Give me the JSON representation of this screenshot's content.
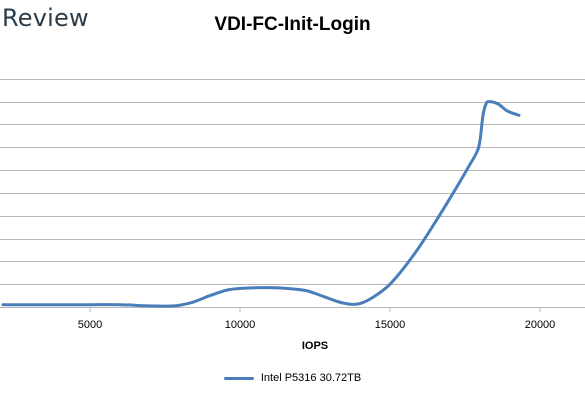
{
  "brand": "Review",
  "chart_data": {
    "type": "line",
    "title": "VDI-FC-Init-Login",
    "xlabel": "IOPS",
    "ylabel": "",
    "x_ticks": [
      5000,
      10000,
      15000,
      20000
    ],
    "xlim": [
      2000,
      21500
    ],
    "ylim": [
      0,
      11
    ],
    "y_gridlines": [
      0,
      1,
      2,
      3,
      4,
      5,
      6,
      7,
      8,
      9,
      10
    ],
    "grid": true,
    "legend_position": "bottom",
    "series": [
      {
        "name": "Intel P5316 30.72TB",
        "color": "#4a7ebb",
        "x": [
          2100,
          3000,
          4000,
          5000,
          6000,
          7000,
          7800,
          8400,
          9000,
          9600,
          10100,
          10800,
          11500,
          12200,
          12800,
          13300,
          13700,
          14000,
          14400,
          15000,
          15800,
          16500,
          17200,
          17600,
          17900,
          18000,
          18100,
          18200,
          18300,
          18600,
          18900,
          19300
        ],
        "y": [
          0.1,
          0.1,
          0.1,
          0.1,
          0.1,
          0.05,
          0.05,
          0.2,
          0.5,
          0.75,
          0.82,
          0.85,
          0.82,
          0.72,
          0.45,
          0.22,
          0.12,
          0.15,
          0.4,
          1.0,
          2.3,
          3.7,
          5.2,
          6.1,
          6.8,
          7.3,
          8.4,
          8.9,
          9.0,
          8.9,
          8.6,
          8.4
        ]
      }
    ]
  }
}
